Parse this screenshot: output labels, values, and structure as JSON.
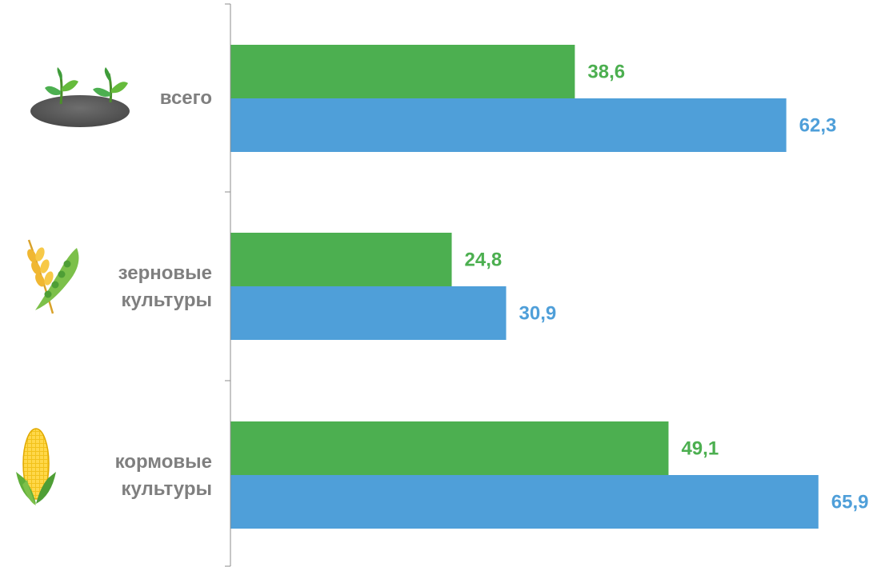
{
  "chart_data": {
    "type": "bar",
    "orientation": "horizontal",
    "categories": [
      "всего",
      "зерновые культуры",
      "кормовые культуры"
    ],
    "category_lines": [
      [
        "всего"
      ],
      [
        "зерновые",
        "культуры"
      ],
      [
        "кормовые",
        "культуры"
      ]
    ],
    "category_icons": [
      "sprouts-icon",
      "wheat-pea-pod-icon",
      "corn-cob-icon"
    ],
    "series": [
      {
        "color": "#4caf50",
        "values": [
          38.6,
          24.8,
          49.1
        ],
        "labels": [
          "38,6",
          "24,8",
          "49,1"
        ]
      },
      {
        "color": "#4f9fd9",
        "values": [
          62.3,
          30.9,
          65.9
        ],
        "labels": [
          "62,3",
          "30,9",
          "65,9"
        ]
      }
    ],
    "xlim": [
      0,
      72
    ],
    "grid": false,
    "legend": "none",
    "colors": {
      "category_text": "#7f7f7f",
      "axis": "#8c8c8c"
    }
  }
}
